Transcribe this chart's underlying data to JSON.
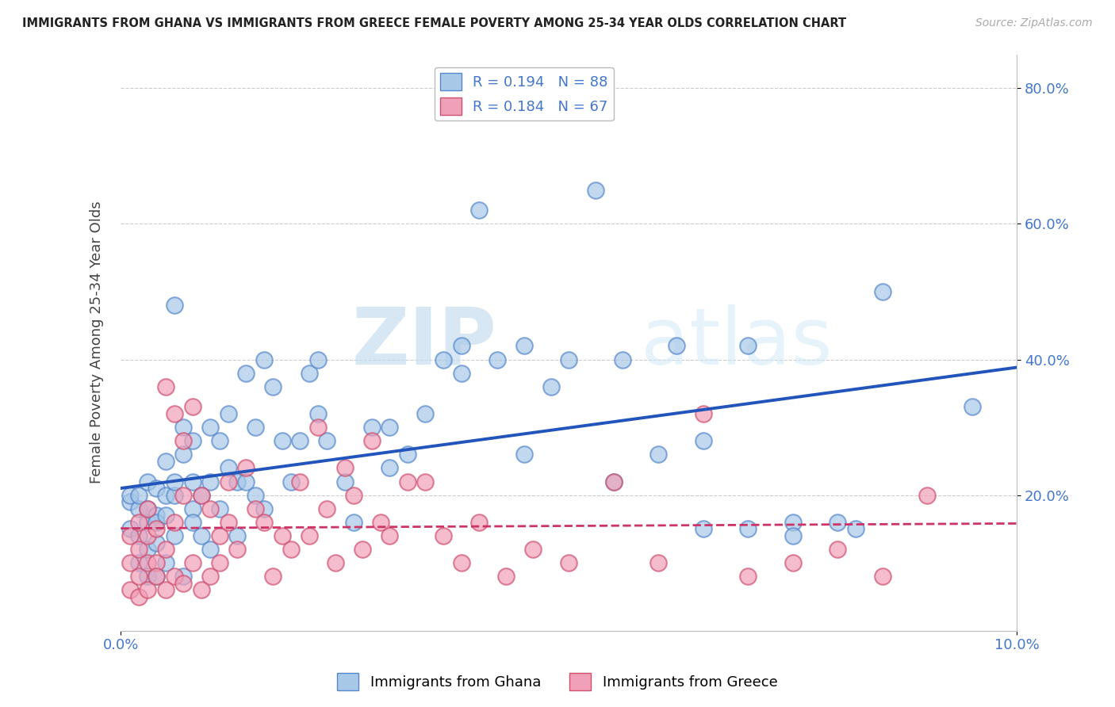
{
  "title": "IMMIGRANTS FROM GHANA VS IMMIGRANTS FROM GREECE FEMALE POVERTY AMONG 25-34 YEAR OLDS CORRELATION CHART",
  "source": "Source: ZipAtlas.com",
  "ylabel": "Female Poverty Among 25-34 Year Olds",
  "xlim": [
    0.0,
    0.1
  ],
  "ylim": [
    0.0,
    0.85
  ],
  "xticks": [
    0.0,
    0.1
  ],
  "xtick_labels": [
    "0.0%",
    "10.0%"
  ],
  "yticks": [
    0.2,
    0.4,
    0.6,
    0.8
  ],
  "ytick_labels": [
    "20.0%",
    "40.0%",
    "60.0%",
    "80.0%"
  ],
  "ghana_color": "#a8c8e8",
  "ghana_edge": "#5588cc",
  "greece_color": "#f0a0b8",
  "greece_edge": "#d05070",
  "ghana_line_color": "#2255bb",
  "greece_line_color": "#cc3366",
  "ghana_R": 0.194,
  "ghana_N": 88,
  "greece_R": 0.184,
  "greece_N": 67,
  "ghana_points_x": [
    0.001,
    0.001,
    0.001,
    0.002,
    0.002,
    0.002,
    0.002,
    0.003,
    0.003,
    0.003,
    0.003,
    0.003,
    0.004,
    0.004,
    0.004,
    0.004,
    0.004,
    0.005,
    0.005,
    0.005,
    0.005,
    0.006,
    0.006,
    0.006,
    0.006,
    0.007,
    0.007,
    0.007,
    0.008,
    0.008,
    0.008,
    0.008,
    0.009,
    0.009,
    0.01,
    0.01,
    0.01,
    0.011,
    0.011,
    0.012,
    0.012,
    0.013,
    0.013,
    0.014,
    0.014,
    0.015,
    0.015,
    0.016,
    0.016,
    0.017,
    0.018,
    0.019,
    0.02,
    0.021,
    0.022,
    0.023,
    0.025,
    0.026,
    0.028,
    0.03,
    0.032,
    0.034,
    0.036,
    0.038,
    0.04,
    0.042,
    0.045,
    0.048,
    0.05,
    0.053,
    0.056,
    0.06,
    0.065,
    0.07,
    0.075,
    0.08,
    0.082,
    0.085,
    0.022,
    0.03,
    0.038,
    0.045,
    0.055,
    0.062,
    0.065,
    0.07,
    0.075,
    0.095
  ],
  "ghana_points_y": [
    0.19,
    0.15,
    0.2,
    0.14,
    0.18,
    0.1,
    0.2,
    0.16,
    0.22,
    0.12,
    0.08,
    0.18,
    0.17,
    0.13,
    0.21,
    0.08,
    0.16,
    0.2,
    0.1,
    0.17,
    0.25,
    0.48,
    0.2,
    0.14,
    0.22,
    0.26,
    0.08,
    0.3,
    0.18,
    0.28,
    0.16,
    0.22,
    0.2,
    0.14,
    0.22,
    0.12,
    0.3,
    0.28,
    0.18,
    0.24,
    0.32,
    0.22,
    0.14,
    0.38,
    0.22,
    0.3,
    0.2,
    0.4,
    0.18,
    0.36,
    0.28,
    0.22,
    0.28,
    0.38,
    0.4,
    0.28,
    0.22,
    0.16,
    0.3,
    0.24,
    0.26,
    0.32,
    0.4,
    0.38,
    0.62,
    0.4,
    0.42,
    0.36,
    0.4,
    0.65,
    0.4,
    0.26,
    0.28,
    0.42,
    0.16,
    0.16,
    0.15,
    0.5,
    0.32,
    0.3,
    0.42,
    0.26,
    0.22,
    0.42,
    0.15,
    0.15,
    0.14,
    0.33
  ],
  "greece_points_x": [
    0.001,
    0.001,
    0.001,
    0.002,
    0.002,
    0.002,
    0.002,
    0.003,
    0.003,
    0.003,
    0.003,
    0.004,
    0.004,
    0.004,
    0.005,
    0.005,
    0.005,
    0.006,
    0.006,
    0.006,
    0.007,
    0.007,
    0.007,
    0.008,
    0.008,
    0.009,
    0.009,
    0.01,
    0.01,
    0.011,
    0.011,
    0.012,
    0.012,
    0.013,
    0.014,
    0.015,
    0.016,
    0.017,
    0.018,
    0.019,
    0.02,
    0.021,
    0.022,
    0.023,
    0.024,
    0.025,
    0.026,
    0.027,
    0.028,
    0.029,
    0.03,
    0.032,
    0.034,
    0.036,
    0.038,
    0.04,
    0.043,
    0.046,
    0.05,
    0.055,
    0.06,
    0.065,
    0.07,
    0.075,
    0.08,
    0.085,
    0.09
  ],
  "greece_points_y": [
    0.14,
    0.1,
    0.06,
    0.16,
    0.12,
    0.08,
    0.05,
    0.14,
    0.1,
    0.06,
    0.18,
    0.15,
    0.1,
    0.08,
    0.36,
    0.12,
    0.06,
    0.32,
    0.08,
    0.16,
    0.28,
    0.07,
    0.2,
    0.33,
    0.1,
    0.2,
    0.06,
    0.18,
    0.08,
    0.14,
    0.1,
    0.22,
    0.16,
    0.12,
    0.24,
    0.18,
    0.16,
    0.08,
    0.14,
    0.12,
    0.22,
    0.14,
    0.3,
    0.18,
    0.1,
    0.24,
    0.2,
    0.12,
    0.28,
    0.16,
    0.14,
    0.22,
    0.22,
    0.14,
    0.1,
    0.16,
    0.08,
    0.12,
    0.1,
    0.22,
    0.1,
    0.32,
    0.08,
    0.1,
    0.12,
    0.08,
    0.2
  ],
  "watermark_zip": "ZIP",
  "watermark_atlas": "atlas",
  "background_color": "#ffffff",
  "grid_color": "#cccccc"
}
